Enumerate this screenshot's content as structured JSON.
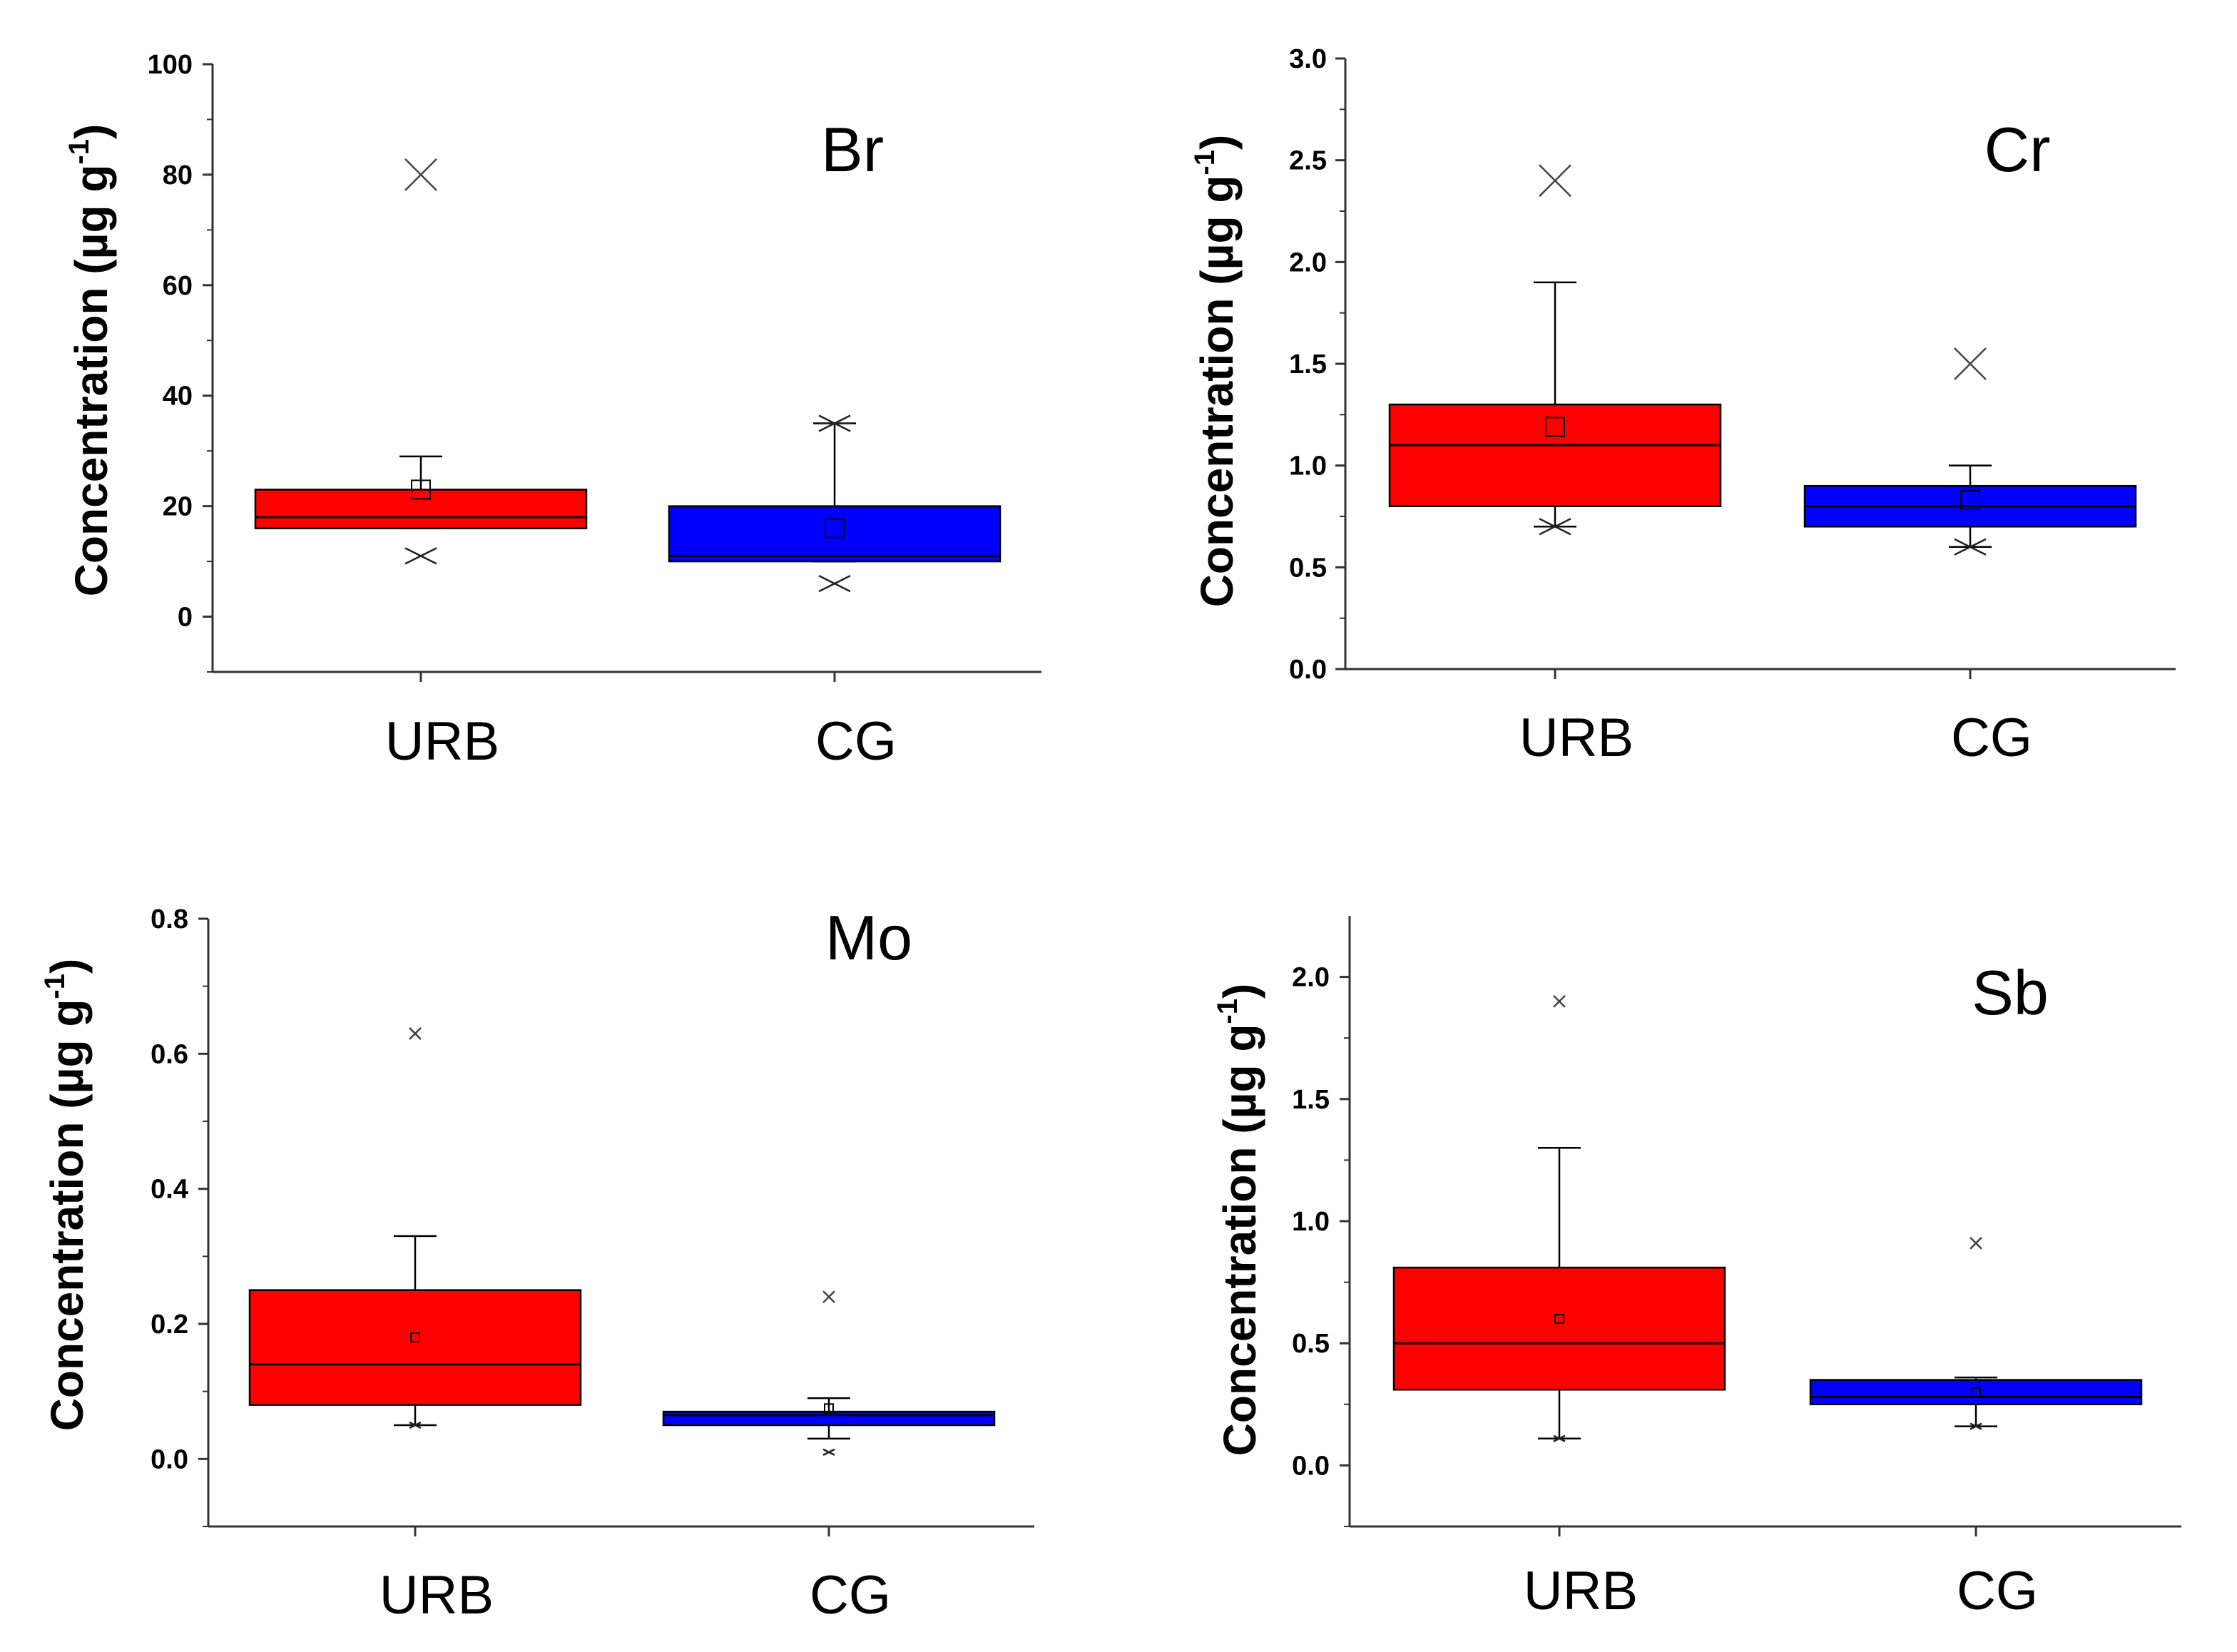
{
  "chart_data": [
    {
      "type": "box",
      "title": "Br",
      "ylabel": "Concentration (µg g",
      "ylabel_sup": "-1",
      "ylabel_close": ")",
      "ylim": [
        -10,
        100
      ],
      "yticks": [
        0,
        20,
        40,
        60,
        80,
        100
      ],
      "ytick_labels": [
        "0",
        "20",
        "40",
        "60",
        "80",
        "100"
      ],
      "categories": [
        "URB",
        "CG"
      ],
      "series": [
        {
          "name": "URB",
          "color": "#ff0000",
          "q1": 16,
          "median": 18,
          "q3": 23,
          "whisker_low": 16,
          "whisker_high": 29,
          "mean": 23,
          "min_marker": 11,
          "max_marker": 80,
          "max_marker_style": "x"
        },
        {
          "name": "CG",
          "color": "#0000ff",
          "q1": 10,
          "median": 11,
          "q3": 20,
          "whisker_low": 10,
          "whisker_high": 35,
          "mean": 16,
          "min_marker": 6,
          "max_marker": 35,
          "max_marker_style": "star"
        }
      ]
    },
    {
      "type": "box",
      "title": "Cr",
      "ylabel": "Concentration (µg g",
      "ylabel_sup": "-1",
      "ylabel_close": ")",
      "ylim": [
        0,
        3.0
      ],
      "yticks": [
        0,
        0.5,
        1.0,
        1.5,
        2.0,
        2.5,
        3.0
      ],
      "ytick_labels": [
        "0.0",
        "0.5",
        "1.0",
        "1.5",
        "2.0",
        "2.5",
        "3.0"
      ],
      "categories": [
        "URB",
        "CG"
      ],
      "series": [
        {
          "name": "URB",
          "color": "#ff0000",
          "q1": 0.8,
          "median": 1.1,
          "q3": 1.3,
          "whisker_low": 0.7,
          "whisker_high": 1.9,
          "mean": 1.19,
          "min_marker": 0.7,
          "max_marker": 2.4,
          "max_marker_style": "x"
        },
        {
          "name": "CG",
          "color": "#0000ff",
          "q1": 0.7,
          "median": 0.8,
          "q3": 0.9,
          "whisker_low": 0.6,
          "whisker_high": 1.0,
          "mean": 0.83,
          "min_marker": 0.6,
          "max_marker": 1.5,
          "max_marker_style": "x"
        }
      ]
    },
    {
      "type": "box",
      "title": "Mo",
      "ylabel": "Concentration (µg g",
      "ylabel_sup": "-1",
      "ylabel_close": ")",
      "ylim": [
        -0.1,
        0.8
      ],
      "yticks": [
        0,
        0.2,
        0.4,
        0.6,
        0.8
      ],
      "ytick_labels": [
        "0.0",
        "0.2",
        "0.4",
        "0.6",
        "0.8"
      ],
      "categories": [
        "URB",
        "CG"
      ],
      "series": [
        {
          "name": "URB",
          "color": "#ff0000",
          "q1": 0.08,
          "median": 0.14,
          "q3": 0.25,
          "whisker_low": 0.05,
          "whisker_high": 0.33,
          "mean": 0.18,
          "min_marker": 0.05,
          "max_marker": 0.63,
          "max_marker_style": "x"
        },
        {
          "name": "CG",
          "color": "#0000ff",
          "q1": 0.05,
          "median": 0.065,
          "q3": 0.07,
          "whisker_low": 0.03,
          "whisker_high": 0.09,
          "mean": 0.075,
          "min_marker": 0.01,
          "max_marker": 0.24,
          "max_marker_style": "x"
        }
      ]
    },
    {
      "type": "box",
      "title": "Sb",
      "ylabel": "Concentration (µg g",
      "ylabel_sup": "-1",
      "ylabel_close": ")",
      "ylim": [
        -0.25,
        2.25
      ],
      "yticks": [
        0,
        0.5,
        1.0,
        1.5,
        2.0
      ],
      "ytick_labels": [
        "0.0",
        "0.5",
        "1.0",
        "1.5",
        "2.0"
      ],
      "categories": [
        "URB",
        "CG"
      ],
      "series": [
        {
          "name": "URB",
          "color": "#ff0000",
          "q1": 0.31,
          "median": 0.5,
          "q3": 0.81,
          "whisker_low": 0.11,
          "whisker_high": 1.3,
          "mean": 0.6,
          "min_marker": 0.11,
          "max_marker": 1.9,
          "max_marker_style": "x"
        },
        {
          "name": "CG",
          "color": "#0000ff",
          "q1": 0.25,
          "median": 0.28,
          "q3": 0.35,
          "whisker_low": 0.16,
          "whisker_high": 0.36,
          "mean": 0.3,
          "min_marker": 0.16,
          "max_marker": 0.91,
          "max_marker_style": "x"
        }
      ]
    }
  ]
}
